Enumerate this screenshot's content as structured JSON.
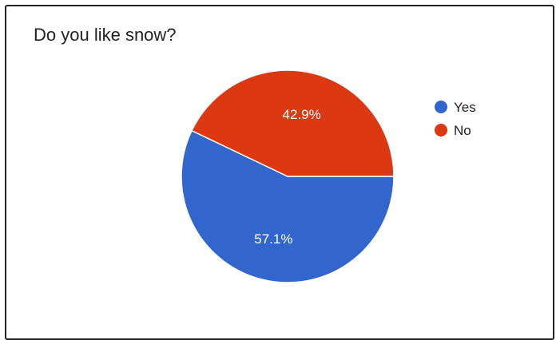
{
  "chart_data": {
    "type": "pie",
    "title": "Do you like snow?",
    "start_angle_deg": 90,
    "slices": [
      {
        "label": "Yes",
        "value": 57.1,
        "display": "57.1%",
        "color": "#3366cc"
      },
      {
        "label": "No",
        "value": 42.9,
        "display": "42.9%",
        "color": "#dc3912"
      }
    ],
    "legend": {
      "position": "right"
    }
  }
}
